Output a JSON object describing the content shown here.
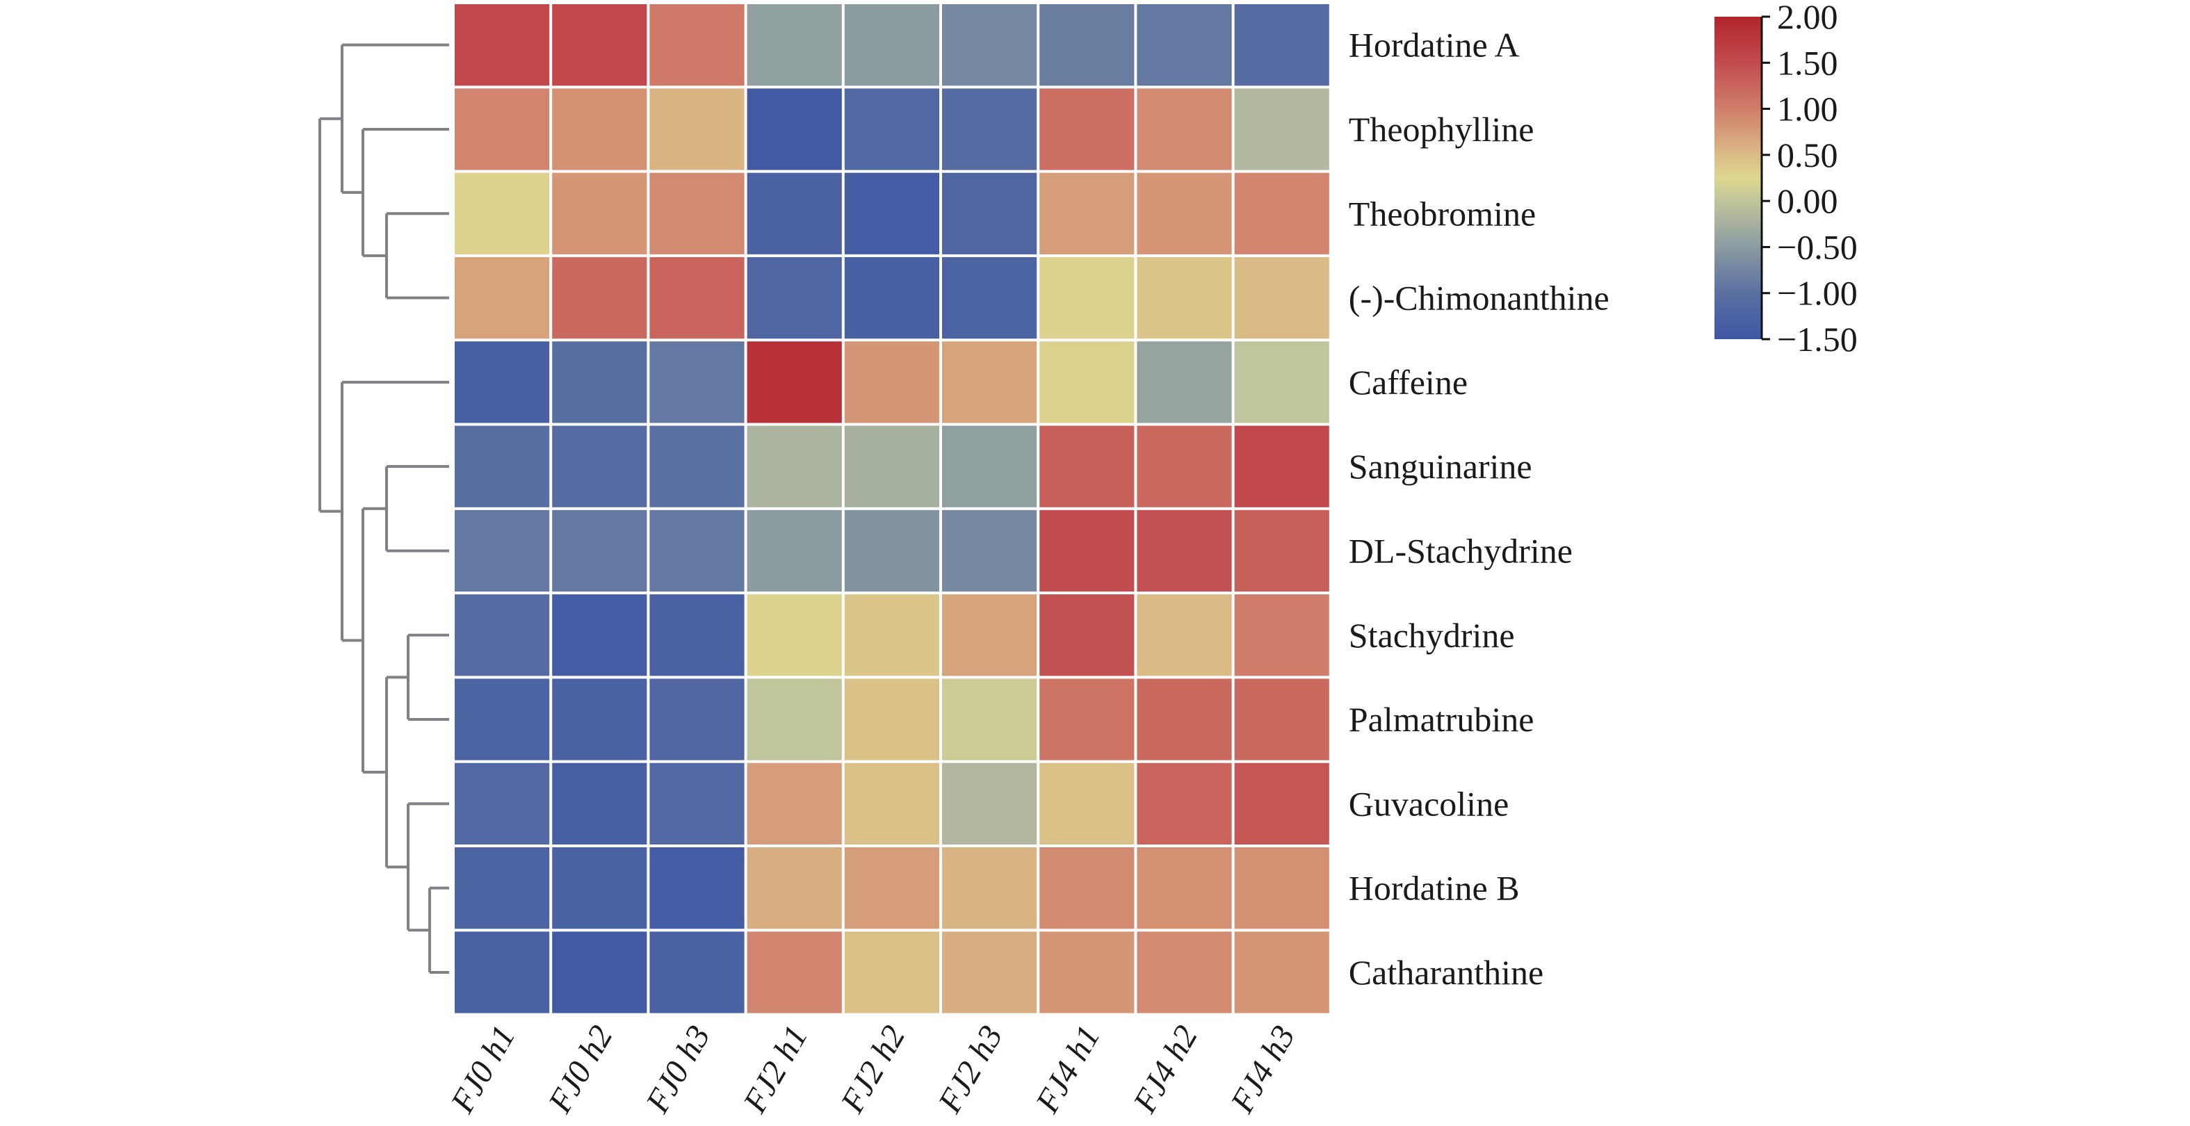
{
  "chart_data": {
    "type": "heatmap",
    "title": "",
    "xlabel": "",
    "ylabel": "",
    "columns": [
      "FJ0 h1",
      "FJ0 h2",
      "FJ0 h3",
      "FJ2 h1",
      "FJ2 h2",
      "FJ2 h3",
      "FJ4 h1",
      "FJ4 h2",
      "FJ4 h3"
    ],
    "rows": [
      "Hordatine A",
      "Theophylline",
      "Theobromine",
      "(-)-Chimonanthine",
      "Caffeine",
      "Sanguinarine",
      "DL-Stachydrine",
      "Stachydrine",
      "Palmatrubine",
      "Guvacoline",
      "Hordatine B",
      "Catharanthine"
    ],
    "values": [
      [
        1.55,
        1.55,
        1.05,
        -0.45,
        -0.5,
        -0.7,
        -0.85,
        -0.9,
        -1.1
      ],
      [
        0.95,
        0.85,
        0.55,
        -1.45,
        -1.15,
        -1.1,
        1.15,
        0.9,
        -0.15
      ],
      [
        0.3,
        0.8,
        0.9,
        -1.3,
        -1.4,
        -1.2,
        0.75,
        0.8,
        0.95
      ],
      [
        0.7,
        1.2,
        1.25,
        -1.2,
        -1.35,
        -1.25,
        0.3,
        0.4,
        0.5
      ],
      [
        -1.35,
        -1.05,
        -0.9,
        1.85,
        0.8,
        0.7,
        0.3,
        -0.4,
        0.0
      ],
      [
        -1.05,
        -1.1,
        -1.0,
        -0.2,
        -0.25,
        -0.45,
        1.3,
        1.2,
        1.55
      ],
      [
        -0.9,
        -0.9,
        -0.9,
        -0.5,
        -0.6,
        -0.7,
        1.5,
        1.45,
        1.3
      ],
      [
        -1.1,
        -1.4,
        -1.3,
        0.3,
        0.4,
        0.7,
        1.45,
        0.5,
        1.0
      ],
      [
        -1.25,
        -1.3,
        -1.2,
        0.0,
        0.45,
        0.1,
        1.1,
        1.2,
        1.2
      ],
      [
        -1.15,
        -1.35,
        -1.15,
        0.75,
        0.45,
        -0.15,
        0.45,
        1.25,
        1.4
      ],
      [
        -1.25,
        -1.3,
        -1.4,
        0.6,
        0.75,
        0.55,
        0.9,
        0.85,
        0.85
      ],
      [
        -1.3,
        -1.45,
        -1.3,
        0.95,
        0.45,
        0.6,
        0.8,
        0.9,
        0.8
      ]
    ],
    "colorbar": {
      "range": [
        -1.5,
        2.0
      ],
      "ticks": [
        2.0,
        1.5,
        1.0,
        0.5,
        0.0,
        -0.5,
        -1.0,
        -1.5
      ],
      "tick_labels": [
        "2.00",
        "1.50",
        "1.00",
        "0.50",
        "0.00",
        "−0.50",
        "−1.00",
        "−1.50"
      ],
      "placement": "top-right",
      "color_stops": [
        {
          "value": -1.5,
          "color": "#3F57A4"
        },
        {
          "value": -1.0,
          "color": "#5A70A2"
        },
        {
          "value": -0.5,
          "color": "#8B9BA0"
        },
        {
          "value": 0.0,
          "color": "#C1C59C"
        },
        {
          "value": 0.25,
          "color": "#DDD68F"
        },
        {
          "value": 0.5,
          "color": "#DABB86"
        },
        {
          "value": 1.0,
          "color": "#D07E6B"
        },
        {
          "value": 1.5,
          "color": "#C24C4E"
        },
        {
          "value": 2.0,
          "color": "#B2262C"
        }
      ]
    },
    "row_dendrogram": {
      "side": "left",
      "color": "#7f8187",
      "tree": [
        [
          0,
          [
            1,
            [
              2,
              3
            ]
          ]
        ],
        [
          4,
          [
            [
              5,
              6
            ],
            [
              [
                7,
                8
              ],
              [
                9,
                [
                  10,
                  11
                ]
              ]
            ]
          ]
        ]
      ]
    }
  }
}
